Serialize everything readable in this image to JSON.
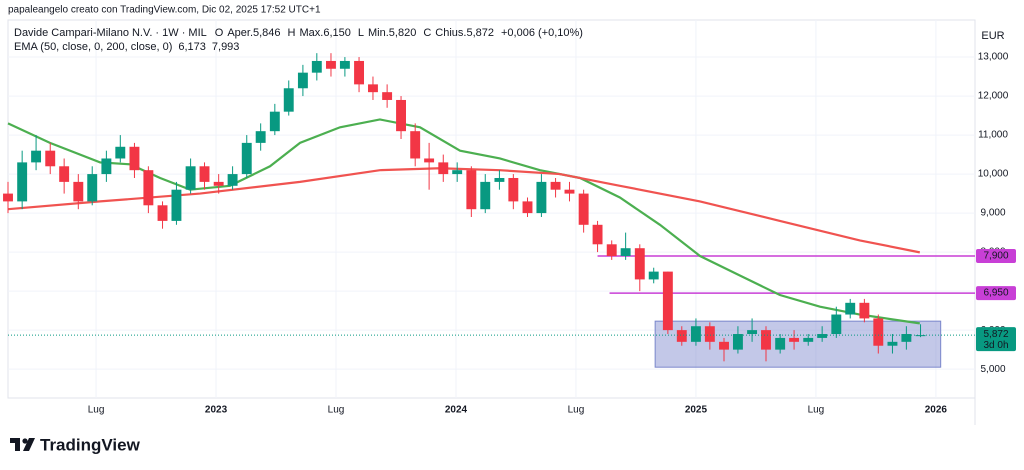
{
  "chart_data": {
    "type": "candlestick",
    "watermark": "papaleangelo creato con TradingView.com, Dic 02, 2025 17:52 UTC+1",
    "symbol": "Davide Campari-Milano N.V. · 1W · MIL",
    "ohlc_legend": [
      {
        "label": "O",
        "text": "Aper.5,846"
      },
      {
        "label": "H",
        "text": "Max.6,150"
      },
      {
        "label": "L",
        "text": "Min.5,820"
      },
      {
        "label": "C",
        "text": "Chius.5,872"
      }
    ],
    "change": "+0,006 (+0,10%)",
    "indicator_title": "EMA (50, close, 0, 200, close, 0)",
    "currency": "EUR",
    "brand": "TradingView",
    "up_color": "#089981",
    "down_color": "#f23645",
    "grid": true,
    "xlim": [
      2022.133,
      2026.163
    ],
    "xticks": [
      {
        "value": 2022.5,
        "label": "Lug"
      },
      {
        "value": 2023.0,
        "label": "2023"
      },
      {
        "value": 2023.5,
        "label": "Lug"
      },
      {
        "value": 2024.0,
        "label": "2024"
      },
      {
        "value": 2024.5,
        "label": "Lug"
      },
      {
        "value": 2025.0,
        "label": "2025"
      },
      {
        "value": 2025.5,
        "label": "Lug"
      },
      {
        "value": 2026.0,
        "label": "2026"
      }
    ],
    "ylim": [
      4.26,
      13.95
    ],
    "yticks": [
      {
        "value": 5,
        "label": "5,000"
      },
      {
        "value": 6,
        "label": "6,000"
      },
      {
        "value": 7,
        "label": "7,000"
      },
      {
        "value": 8,
        "label": "8,000"
      },
      {
        "value": 9,
        "label": "9,000"
      },
      {
        "value": 10,
        "label": "10,000"
      },
      {
        "value": 11,
        "label": "11,000"
      },
      {
        "value": 12,
        "label": "12,000"
      },
      {
        "value": 13,
        "label": "13,000"
      }
    ],
    "x": [
      2022.133,
      2022.192,
      2022.25,
      2022.309,
      2022.367,
      2022.426,
      2022.484,
      2022.543,
      2022.601,
      2022.66,
      2022.718,
      2022.777,
      2022.835,
      2022.894,
      2022.952,
      2023.011,
      2023.069,
      2023.128,
      2023.186,
      2023.245,
      2023.303,
      2023.362,
      2023.42,
      2023.479,
      2023.537,
      2023.596,
      2023.654,
      2023.713,
      2023.771,
      2023.83,
      2023.888,
      2023.947,
      2024.005,
      2024.064,
      2024.122,
      2024.181,
      2024.239,
      2024.298,
      2024.356,
      2024.415,
      2024.473,
      2024.532,
      2024.59,
      2024.649,
      2024.707,
      2024.766,
      2024.824,
      2024.883,
      2024.941,
      2025.0,
      2025.058,
      2025.117,
      2025.175,
      2025.234,
      2025.292,
      2025.351,
      2025.409,
      2025.468,
      2025.526,
      2025.585,
      2025.643,
      2025.702,
      2025.76,
      2025.819,
      2025.877,
      2025.936
    ],
    "open": [
      9.5,
      9.3,
      10.3,
      10.6,
      10.2,
      9.8,
      9.3,
      10.0,
      10.4,
      10.7,
      10.1,
      9.2,
      8.8,
      9.6,
      10.2,
      9.8,
      9.7,
      10.0,
      10.8,
      11.1,
      11.6,
      12.2,
      12.6,
      12.9,
      12.7,
      12.9,
      12.3,
      12.1,
      11.9,
      11.1,
      10.4,
      10.3,
      10.0,
      10.1,
      9.1,
      9.8,
      9.9,
      9.3,
      9.0,
      9.8,
      9.6,
      9.5,
      8.7,
      8.2,
      7.9,
      8.1,
      7.3,
      7.5,
      6.0,
      5.7,
      6.1,
      5.7,
      5.5,
      5.9,
      6.0,
      5.5,
      5.8,
      5.7,
      5.8,
      5.9,
      6.4,
      6.7,
      6.3,
      5.6,
      5.7,
      5.846
    ],
    "high": [
      9.8,
      10.6,
      11.0,
      10.8,
      10.4,
      10.0,
      10.2,
      10.6,
      11.0,
      10.8,
      10.2,
      9.3,
      9.8,
      10.4,
      10.3,
      10.0,
      10.2,
      11.0,
      11.3,
      11.8,
      12.4,
      12.8,
      13.1,
      13.1,
      13.0,
      13.0,
      12.5,
      12.3,
      12.0,
      11.3,
      10.8,
      10.5,
      10.3,
      10.2,
      10.0,
      10.1,
      10.0,
      9.4,
      10.0,
      9.9,
      9.8,
      9.6,
      8.8,
      8.3,
      8.5,
      8.2,
      7.6,
      7.5,
      6.1,
      6.3,
      6.2,
      5.8,
      6.1,
      6.3,
      6.1,
      5.9,
      6.0,
      5.9,
      6.1,
      6.6,
      6.8,
      6.8,
      6.4,
      5.9,
      6.1,
      6.15
    ],
    "low": [
      9.0,
      9.1,
      10.1,
      10.0,
      9.5,
      9.1,
      9.2,
      9.8,
      10.3,
      9.9,
      9.0,
      8.6,
      8.7,
      9.5,
      9.6,
      9.5,
      9.6,
      9.9,
      10.6,
      11.0,
      11.5,
      12.0,
      12.4,
      12.5,
      12.5,
      12.1,
      11.9,
      11.7,
      10.9,
      10.2,
      9.6,
      9.8,
      9.8,
      8.9,
      9.0,
      9.6,
      9.1,
      8.9,
      8.9,
      9.4,
      9.3,
      8.5,
      8.0,
      7.8,
      7.8,
      7.0,
      7.2,
      5.9,
      5.6,
      5.6,
      5.5,
      5.2,
      5.4,
      5.7,
      5.2,
      5.4,
      5.5,
      5.6,
      5.7,
      5.8,
      6.3,
      6.2,
      5.4,
      5.4,
      5.5,
      5.82
    ],
    "close": [
      9.3,
      10.3,
      10.6,
      10.2,
      9.8,
      9.3,
      10.0,
      10.4,
      10.7,
      10.1,
      9.2,
      8.8,
      9.6,
      10.2,
      9.8,
      9.7,
      10.0,
      10.8,
      11.1,
      11.6,
      12.2,
      12.6,
      12.9,
      12.7,
      12.9,
      12.3,
      12.1,
      11.9,
      11.1,
      10.4,
      10.3,
      10.0,
      10.1,
      9.1,
      9.8,
      9.9,
      9.3,
      9.0,
      9.8,
      9.6,
      9.5,
      8.7,
      8.2,
      7.9,
      8.1,
      7.3,
      7.5,
      6.0,
      5.7,
      6.1,
      5.7,
      5.5,
      5.9,
      6.0,
      5.5,
      5.8,
      5.7,
      5.8,
      5.9,
      6.4,
      6.7,
      6.3,
      5.6,
      5.7,
      5.9,
      5.872
    ],
    "last_price_label": "5,872",
    "countdown": "3d 0h",
    "indicators": [
      {
        "color": "#4caf50",
        "last_label": "6,173",
        "x": [
          2022.133,
          2022.308,
          2022.517,
          2022.642,
          2022.767,
          2022.892,
          2023.058,
          2023.225,
          2023.35,
          2023.517,
          2023.683,
          2023.85,
          2024.017,
          2024.183,
          2024.35,
          2024.517,
          2024.683,
          2024.85,
          2025.017,
          2025.183,
          2025.35,
          2025.517,
          2025.683,
          2025.933
        ],
        "values": [
          11.3,
          10.8,
          10.3,
          10.25,
          9.9,
          9.6,
          9.7,
          10.2,
          10.8,
          11.2,
          11.4,
          11.2,
          10.6,
          10.4,
          10.1,
          9.9,
          9.4,
          8.7,
          7.9,
          7.4,
          6.9,
          6.6,
          6.4,
          6.173
        ]
      },
      {
        "color": "#f05350",
        "last_label": "7,993",
        "x": [
          2022.133,
          2022.517,
          2022.933,
          2023.35,
          2023.683,
          2023.933,
          2024.183,
          2024.433,
          2024.683,
          2025.017,
          2025.35,
          2025.683,
          2025.933
        ],
        "values": [
          9.1,
          9.3,
          9.5,
          9.8,
          10.1,
          10.15,
          10.1,
          10.0,
          9.7,
          9.3,
          8.8,
          8.3,
          7.993
        ]
      }
    ],
    "hlines": [
      {
        "value": 7.9,
        "label": "7,900",
        "start": 2024.59,
        "color": "#c83fd6"
      },
      {
        "value": 6.95,
        "label": "6,950",
        "start": 2024.64,
        "color": "#c83fd6"
      }
    ],
    "range_box": {
      "x": [
        2024.83,
        2026.02
      ],
      "y": [
        5.05,
        6.23
      ],
      "color": "#7986cb"
    }
  }
}
